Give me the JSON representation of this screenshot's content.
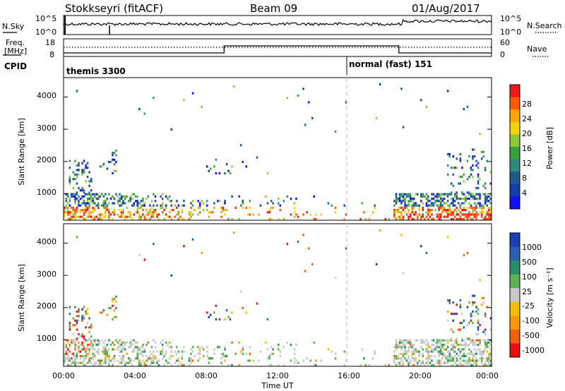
{
  "header": {
    "station": "Stokkseyri (fitACF)",
    "beam": "Beam 09",
    "date": "01/Aug/2017"
  },
  "chart_data": [
    {
      "type": "line",
      "panel": "noise",
      "left_label": "N.Sky",
      "right_label": "N.Search",
      "left_ticks": [
        "10^5",
        "10^0"
      ],
      "right_ticks": [
        "10^5",
        "10^0"
      ],
      "x_range_hours": [
        0,
        24
      ]
    },
    {
      "type": "line",
      "panel": "frequency",
      "left_label": "Freq.",
      "left_label_unit": "[MHz]",
      "right_label": "Nave",
      "left_ticks": [
        "18",
        "8"
      ],
      "right_ticks": [
        "60",
        "0"
      ],
      "freq_series": [
        {
          "x": 0,
          "y": 10
        },
        {
          "x": 9,
          "y": 10
        },
        {
          "x": 9,
          "y": 14
        },
        {
          "x": 18.8,
          "y": 14
        },
        {
          "x": 18.8,
          "y": 10
        },
        {
          "x": 24,
          "y": 10
        }
      ],
      "nave_level": 30
    },
    {
      "type": "table",
      "panel": "cpid",
      "label": "CPID",
      "segments": [
        {
          "start_hour": 0,
          "text": "themis 3300"
        },
        {
          "start_hour": 16,
          "text": "normal (fast) 151"
        }
      ]
    },
    {
      "type": "heatmap",
      "panel": "power",
      "ylabel": "Slant Range [km]",
      "xlabel": "",
      "ylim": [
        180,
        4600
      ],
      "y_ticks": [
        "4000",
        "3000",
        "2000",
        "1000"
      ],
      "colorbar_label": "Power [dB]",
      "colorbar_ticks": [
        "28",
        "24",
        "20",
        "16",
        "12",
        "8",
        "4"
      ],
      "colorbar_colors": [
        "#f01818",
        "#ff5a00",
        "#ffa500",
        "#f2d200",
        "#8fc93a",
        "#3aa040",
        "#2f8a7a",
        "#1f5a8a",
        "#153fa8",
        "#1010ff"
      ]
    },
    {
      "type": "heatmap",
      "panel": "velocity",
      "ylabel": "Slant Range [km]",
      "xlabel": "Time UT",
      "ylim": [
        180,
        4600
      ],
      "y_ticks": [
        "4000",
        "3000",
        "2000",
        "1000"
      ],
      "x_ticks": [
        "00:00",
        "04:00",
        "08:00",
        "12:00",
        "16:00",
        "20:00",
        "00:00"
      ],
      "colorbar_label": "Velocity [m s⁻¹]",
      "colorbar_ticks": [
        "1000",
        "500",
        "100",
        "25",
        "-25",
        "-100",
        "-500",
        "-1000"
      ],
      "colorbar_colors": [
        "#1a3fb0",
        "#2a5fb0",
        "#2a8a6a",
        "#5ab34a",
        "#c8c8c8",
        "#f0c000",
        "#ff9a00",
        "#f06010",
        "#e81010"
      ]
    }
  ]
}
